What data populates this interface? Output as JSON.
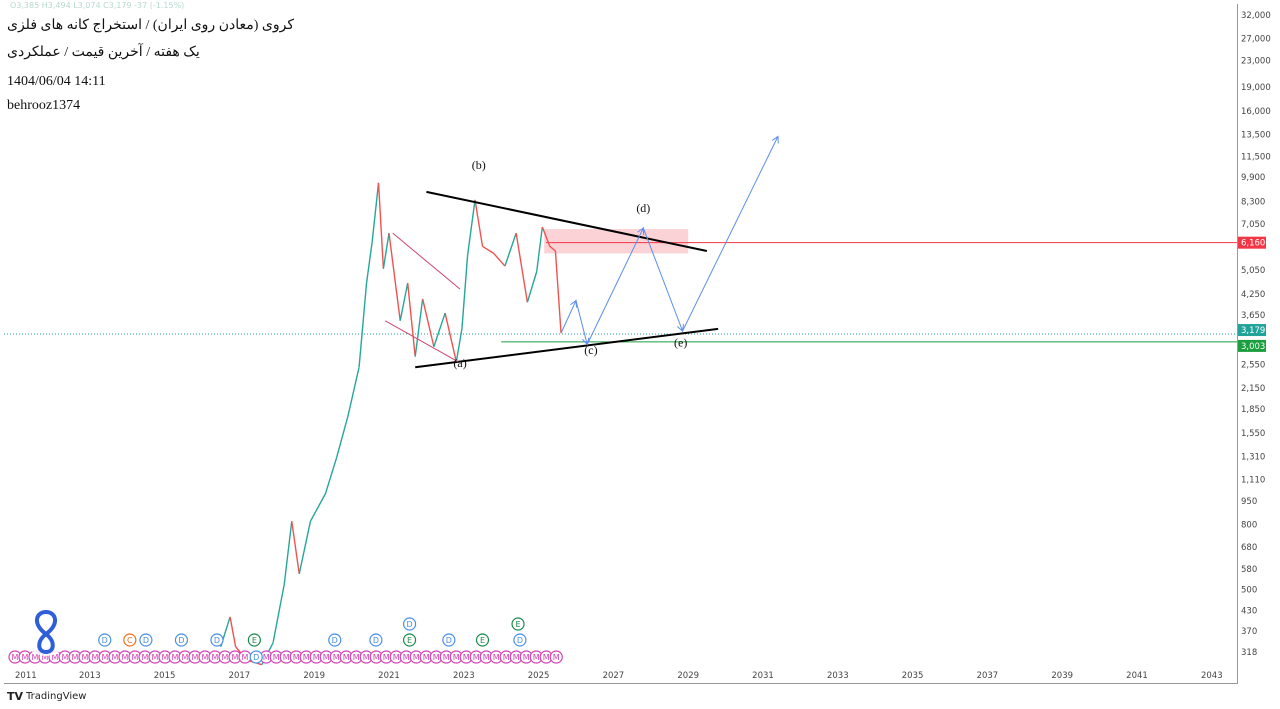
{
  "header": {
    "ohlc": "O3,385 H3,494 L3,074 C3,179 -37 (-1.15%)",
    "title": "کروی (معادن روی ایران) / استخراج کانه های فلزی",
    "subtitle": "یک هفته / آخرین قیمت / عملکردی",
    "datetime": "1404/06/04 14:11",
    "author": "behrooz1374"
  },
  "brand": {
    "logo": "TV",
    "name": "TradingView"
  },
  "colors": {
    "up": "#26a69a",
    "down": "#ef5350",
    "resistance": "#f23645",
    "support": "#1b9e3e",
    "projection": "#5b8def",
    "channel": "#d04470",
    "trend": "#000000",
    "last": "#22a39a"
  },
  "chart_data": {
    "type": "line",
    "title": "کروی weekly",
    "xlabel": "",
    "ylabel": "",
    "y_scale": "log",
    "ylim": [
      300,
      34000
    ],
    "xlim": [
      2011,
      2044
    ],
    "x_ticks": [
      "2011",
      "2013",
      "2015",
      "2017",
      "2019",
      "2021",
      "2023",
      "2025",
      "2027",
      "2029",
      "2031",
      "2033",
      "2035",
      "2037",
      "2039",
      "2041",
      "2043"
    ],
    "y_ticks": [
      "32,000",
      "27,000",
      "23,000",
      "19,000",
      "16,000",
      "13,500",
      "11,500",
      "9,900",
      "8,300",
      "7,050",
      "5,050",
      "4,250",
      "3,650",
      "2,550",
      "2,150",
      "1,850",
      "1,550",
      "1,310",
      "1,110",
      "950",
      "800",
      "680",
      "580",
      "500",
      "430",
      "370",
      "318"
    ],
    "price": [
      [
        2016.5,
        330
      ],
      [
        2016.75,
        410
      ],
      [
        2016.9,
        330
      ],
      [
        2017.2,
        300
      ],
      [
        2017.6,
        290
      ],
      [
        2017.9,
        340
      ],
      [
        2018.2,
        520
      ],
      [
        2018.4,
        820
      ],
      [
        2018.6,
        560
      ],
      [
        2018.9,
        820
      ],
      [
        2019.3,
        1000
      ],
      [
        2019.6,
        1300
      ],
      [
        2019.9,
        1750
      ],
      [
        2020.2,
        2500
      ],
      [
        2020.4,
        4600
      ],
      [
        2020.55,
        6200
      ],
      [
        2020.72,
        9500
      ],
      [
        2020.85,
        5100
      ],
      [
        2021.0,
        6600
      ],
      [
        2021.3,
        3500
      ],
      [
        2021.5,
        4600
      ],
      [
        2021.7,
        2700
      ],
      [
        2021.9,
        4100
      ],
      [
        2022.2,
        2900
      ],
      [
        2022.5,
        3700
      ],
      [
        2022.8,
        2600
      ],
      [
        2022.95,
        3300
      ],
      [
        2023.1,
        5600
      ],
      [
        2023.3,
        8400
      ],
      [
        2023.5,
        6000
      ],
      [
        2023.8,
        5700
      ],
      [
        2024.1,
        5200
      ],
      [
        2024.4,
        6600
      ],
      [
        2024.7,
        4000
      ],
      [
        2024.95,
        5000
      ],
      [
        2025.1,
        6900
      ],
      [
        2025.3,
        6000
      ],
      [
        2025.45,
        5800
      ],
      [
        2025.6,
        3200
      ]
    ],
    "price_levels": [
      {
        "label": "6,160",
        "value": 6160,
        "kind": "resistance"
      },
      {
        "label": "3,179",
        "value": 3179,
        "kind": "last"
      },
      {
        "label": "3,003",
        "value": 3003,
        "kind": "support"
      }
    ],
    "zone": {
      "x": [
        2025.15,
        2029
      ],
      "y": [
        5700,
        6800
      ]
    },
    "trendlines": [
      {
        "kind": "trend",
        "from": [
          2022.0,
          8900
        ],
        "to": [
          2029.5,
          5800
        ]
      },
      {
        "kind": "trend",
        "from": [
          2021.7,
          2500
        ],
        "to": [
          2029.8,
          3300
        ]
      },
      {
        "kind": "channel",
        "from": [
          2021.1,
          6600
        ],
        "to": [
          2022.9,
          4400
        ]
      },
      {
        "kind": "channel",
        "from": [
          2020.9,
          3500
        ],
        "to": [
          2022.85,
          2600
        ]
      }
    ],
    "projection": [
      [
        2025.6,
        3200
      ],
      [
        2026.0,
        4050
      ],
      [
        2026.3,
        2950
      ],
      [
        2027.8,
        6850
      ],
      [
        2028.85,
        3250
      ],
      [
        2031.4,
        13300
      ]
    ],
    "wave_labels": [
      {
        "text": "(a)",
        "at": [
          2022.9,
          2500
        ]
      },
      {
        "text": "(b)",
        "at": [
          2023.4,
          10500
        ]
      },
      {
        "text": "(c)",
        "at": [
          2026.4,
          2750
        ]
      },
      {
        "text": "(d)",
        "at": [
          2027.8,
          7700
        ]
      },
      {
        "text": "(e)",
        "at": [
          2028.8,
          2900
        ]
      }
    ],
    "events": {
      "M": [
        2011.0,
        2011.25,
        2011.5,
        2011.75,
        2012.0,
        2012.25,
        2012.5,
        2012.8,
        2013.05,
        2013.3,
        2013.6,
        2013.85,
        2014.1,
        2014.35,
        2014.65,
        2014.9,
        2015.15,
        2015.45,
        2015.7,
        2015.95,
        2016.2,
        2016.45,
        2016.7,
        2016.95,
        2017.5,
        2017.75,
        2018.0,
        2018.25,
        2018.5,
        2018.8,
        2019.05,
        2019.3,
        2019.55,
        2019.85,
        2020.1,
        2020.35,
        2020.6,
        2020.9,
        2021.15,
        2021.4,
        2021.65,
        2021.9,
        2022.2,
        2022.45,
        2022.7,
        2022.95,
        2023.3,
        2023.6,
        2023.9,
        2024.2,
        2024.5,
        2024.8,
        2025.1,
        2025.35
      ],
      "D": [
        [
          2013.4,
          1
        ],
        [
          2014.5,
          1
        ],
        [
          2015.45,
          1
        ],
        [
          2016.4,
          1
        ],
        [
          2017.45,
          0
        ],
        [
          2019.55,
          1
        ],
        [
          2020.65,
          1
        ],
        [
          2021.55,
          2
        ],
        [
          2022.6,
          1
        ],
        [
          2024.5,
          1
        ]
      ],
      "E": [
        [
          2017.4,
          1
        ],
        [
          2021.55,
          1
        ],
        [
          2023.5,
          1
        ],
        [
          2024.45,
          2
        ]
      ],
      "C": [
        [
          2014.07,
          1
        ]
      ]
    }
  }
}
